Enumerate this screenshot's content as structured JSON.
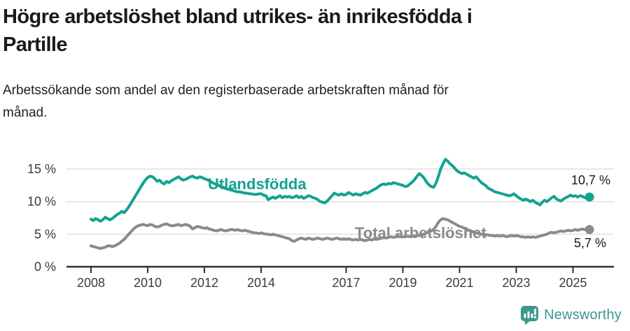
{
  "header": {
    "title_lines": [
      "Högre arbetslöshet bland utrikes- än inrikesfödda i",
      "Partille"
    ],
    "subtitle_lines": [
      "Arbetssökande som andel av den registerbaserade arbetskraften månad för",
      "månad."
    ]
  },
  "branding": {
    "name": "Newsworthy",
    "icon": "bar-chart-speech-bubble-icon",
    "color": "#3f968f"
  },
  "colors": {
    "grid": "#dcdcdc",
    "axis": "#2f2f2f",
    "tick_text": "#3c3c3c",
    "title_text": "#1a1a1a"
  },
  "chart_data": {
    "type": "line",
    "title": "Högre arbetslöshet bland utrikes- än inrikesfödda i Partille",
    "subtitle": "Arbetssökande som andel av den registerbaserade arbetskraften månad för månad.",
    "x_start": "2008-01",
    "x_end": "2025-08",
    "interval": "monthly",
    "x_start_year": 2008,
    "ylim": [
      0,
      17
    ],
    "yticks": [
      0,
      5,
      10,
      15
    ],
    "ytick_suffix": " %",
    "xticks": [
      2008,
      2010,
      2012,
      2014,
      2017,
      2019,
      2021,
      2023,
      2025
    ],
    "grid": "horizontal",
    "legend_position": "inline-labels",
    "series": [
      {
        "name": "Utlandsfödda",
        "color": "#14a291",
        "end_value": 10.7,
        "end_label": "10,7 %",
        "values": [
          7.3,
          7.1,
          7.4,
          7.2,
          7.0,
          7.2,
          7.6,
          7.4,
          7.2,
          7.4,
          7.7,
          8.0,
          8.2,
          8.5,
          8.3,
          8.7,
          9.2,
          9.8,
          10.4,
          11.0,
          11.6,
          12.2,
          12.8,
          13.3,
          13.7,
          13.9,
          13.8,
          13.5,
          13.1,
          13.3,
          12.9,
          12.7,
          13.1,
          12.9,
          13.2,
          13.4,
          13.6,
          13.8,
          13.5,
          13.3,
          13.4,
          13.6,
          13.8,
          13.9,
          13.7,
          13.6,
          13.8,
          13.7,
          13.5,
          13.4,
          13.2,
          13.0,
          12.8,
          12.6,
          12.5,
          12.3,
          12.2,
          12.0,
          11.9,
          11.8,
          11.7,
          11.6,
          11.5,
          11.5,
          11.4,
          11.3,
          11.3,
          11.2,
          11.2,
          11.1,
          11.1,
          11.2,
          11.2,
          11.0,
          10.9,
          10.3,
          10.5,
          10.7,
          10.5,
          10.7,
          10.9,
          10.6,
          10.8,
          10.7,
          10.8,
          10.6,
          10.7,
          10.9,
          10.6,
          10.8,
          10.5,
          10.7,
          10.9,
          10.8,
          10.6,
          10.5,
          10.3,
          10.0,
          9.9,
          9.8,
          10.1,
          10.5,
          10.9,
          11.3,
          11.1,
          11.0,
          11.2,
          11.0,
          11.1,
          11.4,
          11.2,
          11.0,
          11.2,
          11.1,
          11.0,
          11.2,
          11.4,
          11.3,
          11.5,
          11.7,
          11.9,
          12.1,
          12.4,
          12.6,
          12.7,
          12.6,
          12.8,
          12.7,
          12.9,
          12.8,
          12.7,
          12.6,
          12.5,
          12.3,
          12.4,
          12.7,
          13.0,
          13.4,
          13.9,
          14.3,
          14.0,
          13.6,
          13.0,
          12.6,
          12.3,
          12.2,
          12.8,
          13.8,
          15.0,
          15.8,
          16.5,
          16.2,
          15.8,
          15.5,
          15.1,
          14.7,
          14.5,
          14.3,
          14.4,
          14.2,
          14.0,
          13.8,
          13.6,
          13.8,
          13.4,
          13.0,
          12.7,
          12.5,
          12.1,
          11.9,
          11.7,
          11.5,
          11.4,
          11.3,
          11.2,
          11.1,
          11.0,
          10.9,
          11.0,
          11.2,
          10.9,
          10.6,
          10.4,
          10.2,
          10.4,
          10.2,
          10.0,
          10.2,
          9.9,
          9.7,
          9.5,
          9.9,
          10.2,
          10.0,
          10.3,
          10.6,
          10.8,
          10.4,
          10.2,
          10.1,
          10.4,
          10.6,
          10.8,
          11.0,
          10.8,
          10.9,
          10.7,
          10.9,
          10.8,
          10.6,
          10.7,
          10.7
        ]
      },
      {
        "name": "Total arbetslöshet",
        "color": "#8a8a8a",
        "end_value": 5.7,
        "end_label": "5,7 %",
        "values": [
          3.2,
          3.1,
          3.0,
          2.9,
          2.8,
          2.9,
          3.0,
          3.2,
          3.2,
          3.1,
          3.2,
          3.4,
          3.6,
          3.9,
          4.2,
          4.6,
          5.0,
          5.4,
          5.8,
          6.1,
          6.3,
          6.4,
          6.5,
          6.4,
          6.3,
          6.5,
          6.4,
          6.2,
          6.1,
          6.2,
          6.4,
          6.5,
          6.6,
          6.4,
          6.3,
          6.3,
          6.4,
          6.5,
          6.3,
          6.4,
          6.5,
          6.4,
          6.2,
          5.8,
          6.0,
          6.2,
          6.1,
          6.0,
          5.9,
          6.0,
          5.8,
          5.7,
          5.6,
          5.5,
          5.6,
          5.7,
          5.6,
          5.5,
          5.6,
          5.7,
          5.7,
          5.6,
          5.7,
          5.6,
          5.5,
          5.6,
          5.5,
          5.4,
          5.3,
          5.2,
          5.2,
          5.1,
          5.2,
          5.1,
          5.0,
          5.0,
          4.9,
          5.0,
          4.9,
          4.8,
          4.7,
          4.6,
          4.5,
          4.4,
          4.3,
          4.0,
          3.9,
          4.1,
          4.3,
          4.4,
          4.3,
          4.2,
          4.4,
          4.3,
          4.2,
          4.3,
          4.4,
          4.3,
          4.2,
          4.3,
          4.4,
          4.3,
          4.2,
          4.3,
          4.4,
          4.3,
          4.2,
          4.3,
          4.2,
          4.3,
          4.2,
          4.1,
          4.2,
          4.1,
          4.2,
          4.1,
          4.0,
          4.1,
          4.2,
          4.1,
          4.3,
          4.2,
          4.3,
          4.4,
          4.5,
          4.4,
          4.5,
          4.6,
          4.5,
          4.6,
          4.7,
          4.6,
          4.6,
          4.6,
          4.7,
          4.6,
          4.7,
          4.7,
          4.8,
          4.8,
          4.9,
          5.0,
          5.2,
          5.4,
          5.5,
          5.7,
          6.2,
          6.8,
          7.2,
          7.4,
          7.3,
          7.2,
          7.0,
          6.8,
          6.6,
          6.4,
          6.2,
          6.1,
          5.9,
          5.8,
          5.6,
          5.5,
          5.3,
          5.2,
          5.1,
          5.0,
          5.0,
          4.9,
          4.9,
          4.8,
          4.8,
          4.7,
          4.8,
          4.7,
          4.8,
          4.7,
          4.6,
          4.7,
          4.8,
          4.7,
          4.8,
          4.7,
          4.6,
          4.6,
          4.5,
          4.6,
          4.5,
          4.6,
          4.5,
          4.6,
          4.7,
          4.8,
          4.9,
          5.0,
          5.2,
          5.3,
          5.2,
          5.3,
          5.4,
          5.5,
          5.4,
          5.5,
          5.6,
          5.5,
          5.6,
          5.7,
          5.6,
          5.7,
          5.8,
          5.7,
          5.7,
          5.7
        ]
      }
    ]
  }
}
